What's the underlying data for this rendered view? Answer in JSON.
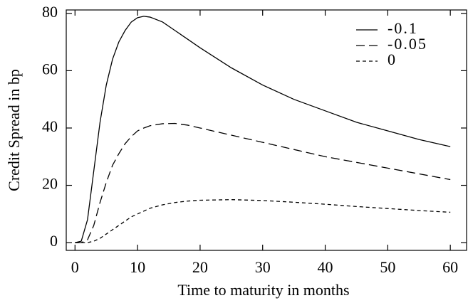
{
  "chart_data": {
    "type": "line",
    "xlabel": "Time to maturity in months",
    "ylabel": "Credit Spread in bp",
    "x": [
      0,
      1,
      2,
      3,
      4,
      5,
      6,
      7,
      8,
      9,
      10,
      11,
      12,
      14,
      16,
      18,
      20,
      25,
      30,
      35,
      40,
      45,
      50,
      55,
      60
    ],
    "series": [
      {
        "name": "-0.1",
        "color": "#000000",
        "linestyle": "solid",
        "values": [
          0,
          0.5,
          8,
          25,
          42,
          55,
          64,
          70,
          74,
          77,
          78.5,
          79,
          78.7,
          77,
          74,
          71,
          68,
          61,
          55,
          50,
          46,
          42,
          39,
          36,
          33.5
        ]
      },
      {
        "name": "-0.05",
        "color": "#000000",
        "linestyle": "dashed",
        "values": [
          0,
          0,
          1,
          6,
          14,
          21,
          27,
          31,
          34.5,
          37,
          39,
          40,
          40.8,
          41.5,
          41.6,
          41,
          40,
          37.5,
          35,
          32.5,
          30,
          28,
          26,
          24,
          22
        ]
      },
      {
        "name": "0",
        "color": "#000000",
        "linestyle": "dotted",
        "values": [
          0,
          0,
          0,
          0.5,
          1.5,
          3,
          4.5,
          6,
          7.5,
          9,
          10,
          11,
          12,
          13.2,
          14,
          14.5,
          14.8,
          15,
          14.7,
          14.1,
          13.4,
          12.6,
          11.9,
          11.2,
          10.6
        ]
      }
    ],
    "xlim": [
      -1.4,
      62.6
    ],
    "xticks": [
      0,
      10,
      20,
      30,
      40,
      50,
      60
    ],
    "ylim": [
      -2.7,
      81.2
    ],
    "yticks": [
      0,
      20,
      40,
      60,
      80
    ],
    "legend": "upper right"
  }
}
